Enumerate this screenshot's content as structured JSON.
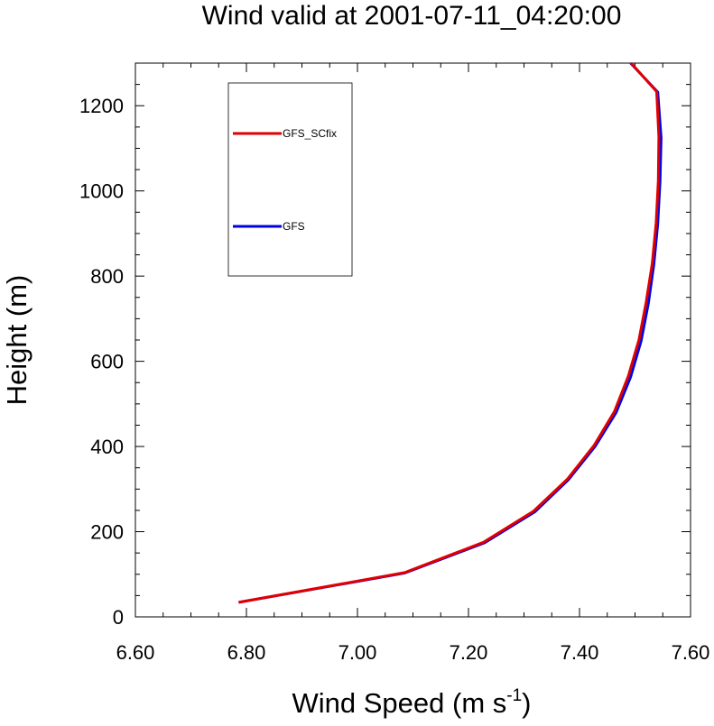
{
  "chart_data": {
    "type": "line",
    "title": "Wind valid at 2001-07-11_04:20:00",
    "xlabel": "Wind Speed (m s",
    "xlabel_sup": "-1",
    "xlabel_end": ")",
    "ylabel": "Height (m)",
    "xlim": [
      6.6,
      7.6
    ],
    "ylim": [
      0,
      1300
    ],
    "xticks": [
      6.6,
      6.8,
      7.0,
      7.2,
      7.4,
      7.6
    ],
    "xtick_labels": [
      "6.60",
      "6.80",
      "7.00",
      "7.20",
      "7.40",
      "7.60"
    ],
    "yticks": [
      0,
      200,
      400,
      600,
      800,
      1000,
      1200
    ],
    "ytick_labels": [
      "0",
      "200",
      "400",
      "600",
      "800",
      "1000",
      "1200"
    ],
    "grid": false,
    "legend_position": "top-left",
    "series": [
      {
        "name": "GFS_SCfix",
        "color": "#e00000",
        "points": [
          [
            6.786,
            34
          ],
          [
            7.085,
            104
          ],
          [
            7.227,
            175
          ],
          [
            7.317,
            248
          ],
          [
            7.378,
            323
          ],
          [
            7.426,
            402
          ],
          [
            7.463,
            482
          ],
          [
            7.488,
            565
          ],
          [
            7.507,
            650
          ],
          [
            7.52,
            738
          ],
          [
            7.531,
            830
          ],
          [
            7.538,
            925
          ],
          [
            7.542,
            1024
          ],
          [
            7.543,
            1127
          ],
          [
            7.539,
            1233
          ],
          [
            7.493,
            1300
          ]
        ]
      },
      {
        "name": "GFS",
        "color": "#0000e0",
        "points": [
          [
            6.786,
            34
          ],
          [
            7.085,
            103
          ],
          [
            7.229,
            174
          ],
          [
            7.32,
            247
          ],
          [
            7.38,
            322
          ],
          [
            7.428,
            400
          ],
          [
            7.466,
            480
          ],
          [
            7.492,
            563
          ],
          [
            7.511,
            648
          ],
          [
            7.524,
            736
          ],
          [
            7.534,
            828
          ],
          [
            7.541,
            923
          ],
          [
            7.545,
            1022
          ],
          [
            7.547,
            1125
          ],
          [
            7.541,
            1232
          ],
          [
            7.492,
            1300
          ]
        ]
      }
    ]
  }
}
